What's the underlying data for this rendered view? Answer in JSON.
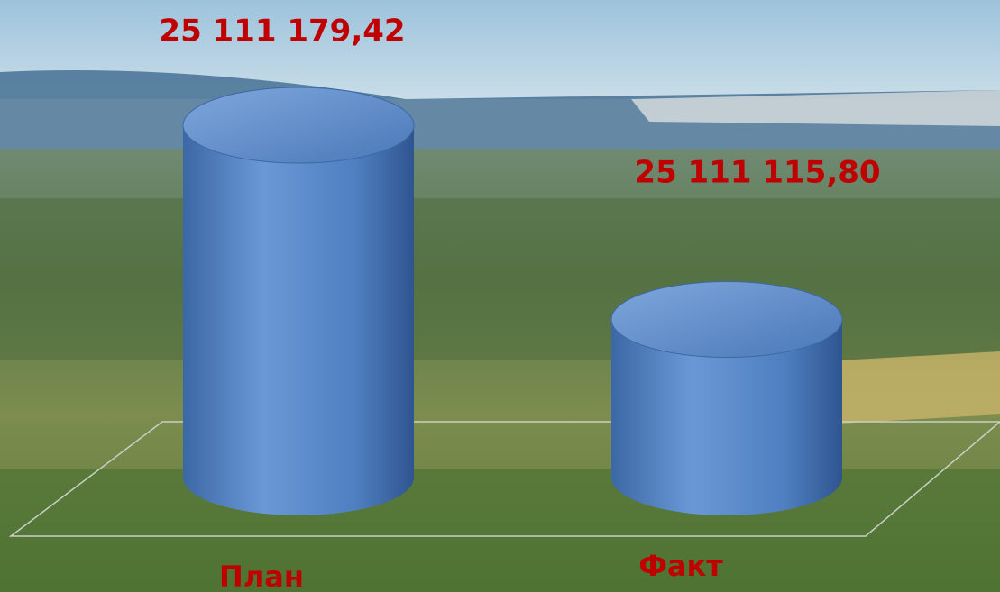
{
  "chart_data": {
    "type": "cylinder",
    "categories": [
      "План",
      "Факт"
    ],
    "values": [
      25111179.42,
      25111115.8
    ],
    "value_labels": [
      "25 111 179,42",
      "25 111 115,80"
    ],
    "color": "#4f7fc0",
    "ylim": [
      25111064,
      25111188
    ]
  }
}
